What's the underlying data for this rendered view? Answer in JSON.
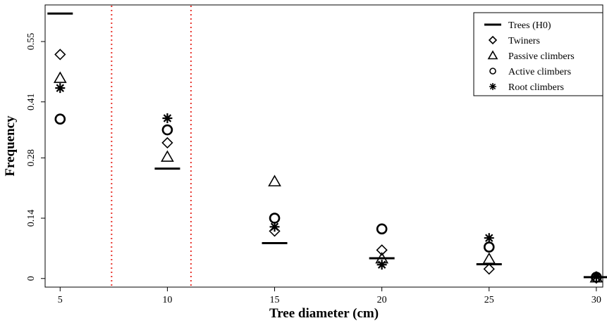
{
  "chart_data": {
    "type": "scatter",
    "title": "",
    "xlabel": "Tree diameter (cm)",
    "ylabel": "Frequency",
    "x": [
      5,
      10,
      15,
      20,
      25,
      30
    ],
    "x_tick_labels": [
      "5",
      "10",
      "15",
      "20",
      "25",
      "30"
    ],
    "y_ticks": [
      0,
      0.14,
      0.28,
      0.41,
      0.55
    ],
    "y_tick_labels": [
      "0",
      "0.14",
      "0.28",
      "0.41",
      "0.55"
    ],
    "xlim": [
      4.3,
      30.3
    ],
    "ylim": [
      -0.02,
      0.635
    ],
    "grid": false,
    "legend_position": "top-right",
    "reference_lines": {
      "orientation": "vertical",
      "style": "dotted",
      "color": "#e8352e",
      "x": [
        7.4,
        11.1
      ]
    },
    "series": [
      {
        "name": "Trees (H0)",
        "marker": "hline",
        "values": [
          0.615,
          0.255,
          0.082,
          0.047,
          0.033,
          0.003
        ]
      },
      {
        "name": "Twiners",
        "marker": "diamond",
        "values": [
          0.52,
          0.315,
          0.11,
          0.066,
          0.022,
          0.001
        ]
      },
      {
        "name": "Passive climbers",
        "marker": "triangle",
        "values": [
          0.465,
          0.282,
          0.225,
          0.046,
          0.045,
          0.002
        ]
      },
      {
        "name": "Active climbers",
        "marker": "circle",
        "values": [
          0.37,
          0.345,
          0.14,
          0.115,
          0.073,
          0.003
        ]
      },
      {
        "name": "Root climbers",
        "marker": "asterisk",
        "values": [
          0.442,
          0.372,
          0.12,
          0.032,
          0.094,
          0.004
        ]
      }
    ]
  }
}
